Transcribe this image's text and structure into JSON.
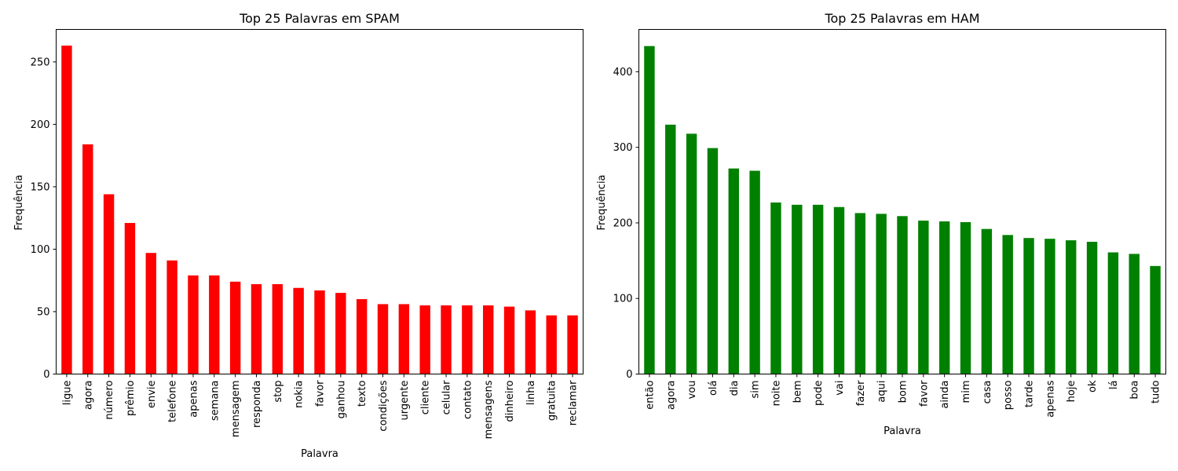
{
  "chart_data": [
    {
      "type": "bar",
      "title": "Top 25 Palavras em SPAM",
      "xlabel": "Palavra",
      "ylabel": "Frequência",
      "ylim": [
        0,
        276
      ],
      "yticks": [
        0,
        50,
        100,
        150,
        200,
        250
      ],
      "color": "#ff0000",
      "grid": false,
      "categories": [
        "ligue",
        "agora",
        "número",
        "prêmio",
        "envie",
        "telefone",
        "apenas",
        "semana",
        "mensagem",
        "responda",
        "stop",
        "nokia",
        "favor",
        "ganhou",
        "texto",
        "condições",
        "urgente",
        "cliente",
        "celular",
        "contato",
        "mensagens",
        "dinheiro",
        "linha",
        "gratuita",
        "reclamar"
      ],
      "values": [
        263,
        184,
        144,
        121,
        97,
        91,
        79,
        79,
        74,
        72,
        72,
        69,
        67,
        65,
        60,
        56,
        56,
        55,
        55,
        55,
        55,
        54,
        51,
        47,
        47
      ]
    },
    {
      "type": "bar",
      "title": "Top 25 Palavras em HAM",
      "xlabel": "Palavra",
      "ylabel": "Frequência",
      "ylim": [
        0,
        456
      ],
      "yticks": [
        0,
        100,
        200,
        300,
        400
      ],
      "color": "#008000",
      "grid": false,
      "categories": [
        "então",
        "agora",
        "vou",
        "olá",
        "dia",
        "sim",
        "noite",
        "bem",
        "pode",
        "vai",
        "fazer",
        "aqui",
        "bom",
        "favor",
        "ainda",
        "mim",
        "casa",
        "posso",
        "tarde",
        "apenas",
        "hoje",
        "ok",
        "lá",
        "boa",
        "tudo"
      ],
      "values": [
        434,
        330,
        318,
        299,
        272,
        269,
        227,
        224,
        224,
        221,
        213,
        212,
        209,
        203,
        202,
        201,
        192,
        184,
        180,
        179,
        177,
        175,
        161,
        159,
        143
      ]
    }
  ]
}
